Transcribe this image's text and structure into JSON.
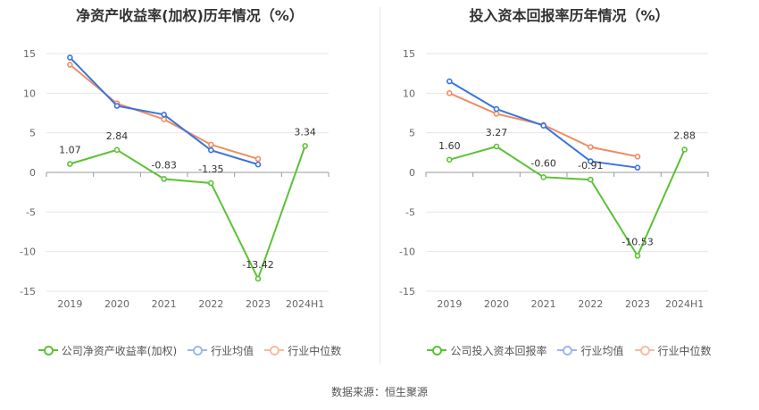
{
  "source_label": "数据来源：恒生聚源",
  "colors": {
    "company": "#5bc236",
    "avg": "#3a75dc",
    "median": "#f08c64"
  },
  "chart_data": [
    {
      "type": "line",
      "title": "净资产收益率(加权)历年情况（%）",
      "categories": [
        "2019",
        "2020",
        "2021",
        "2022",
        "2023",
        "2024H1"
      ],
      "ylim": [
        -15,
        15
      ],
      "yticks": [
        15,
        10,
        5,
        0,
        -5,
        -10,
        -15
      ],
      "grid": true,
      "legend_position": "bottom",
      "series": [
        {
          "name": "公司净资产收益率(加权)",
          "key": "company",
          "values": [
            1.07,
            2.84,
            -0.83,
            -1.35,
            -13.42,
            3.34
          ],
          "labels": [
            "1.07",
            "2.84",
            "-0.83",
            "-1.35",
            "-13.42",
            "3.34"
          ]
        },
        {
          "name": "行业均值",
          "key": "avg",
          "values": [
            14.5,
            8.4,
            7.3,
            2.8,
            1.0,
            null
          ]
        },
        {
          "name": "行业中位数",
          "key": "median",
          "values": [
            13.6,
            8.7,
            6.7,
            3.5,
            1.7,
            null
          ]
        }
      ]
    },
    {
      "type": "line",
      "title": "投入资本回报率历年情况（%）",
      "categories": [
        "2019",
        "2020",
        "2021",
        "2022",
        "2023",
        "2024H1"
      ],
      "ylim": [
        -15,
        15
      ],
      "yticks": [
        15,
        10,
        5,
        0,
        -5,
        -10,
        -15
      ],
      "grid": true,
      "legend_position": "bottom",
      "series": [
        {
          "name": "公司投入资本回报率",
          "key": "company",
          "values": [
            1.6,
            3.27,
            -0.6,
            -0.91,
            -10.53,
            2.88
          ],
          "labels": [
            "1.60",
            "3.27",
            "-0.60",
            "-0.91",
            "-10.53",
            "2.88"
          ]
        },
        {
          "name": "行业均值",
          "key": "avg",
          "values": [
            11.5,
            8.0,
            5.9,
            1.4,
            0.6,
            null
          ]
        },
        {
          "name": "行业中位数",
          "key": "median",
          "values": [
            10.0,
            7.4,
            6.0,
            3.2,
            2.0,
            null
          ]
        }
      ]
    }
  ]
}
